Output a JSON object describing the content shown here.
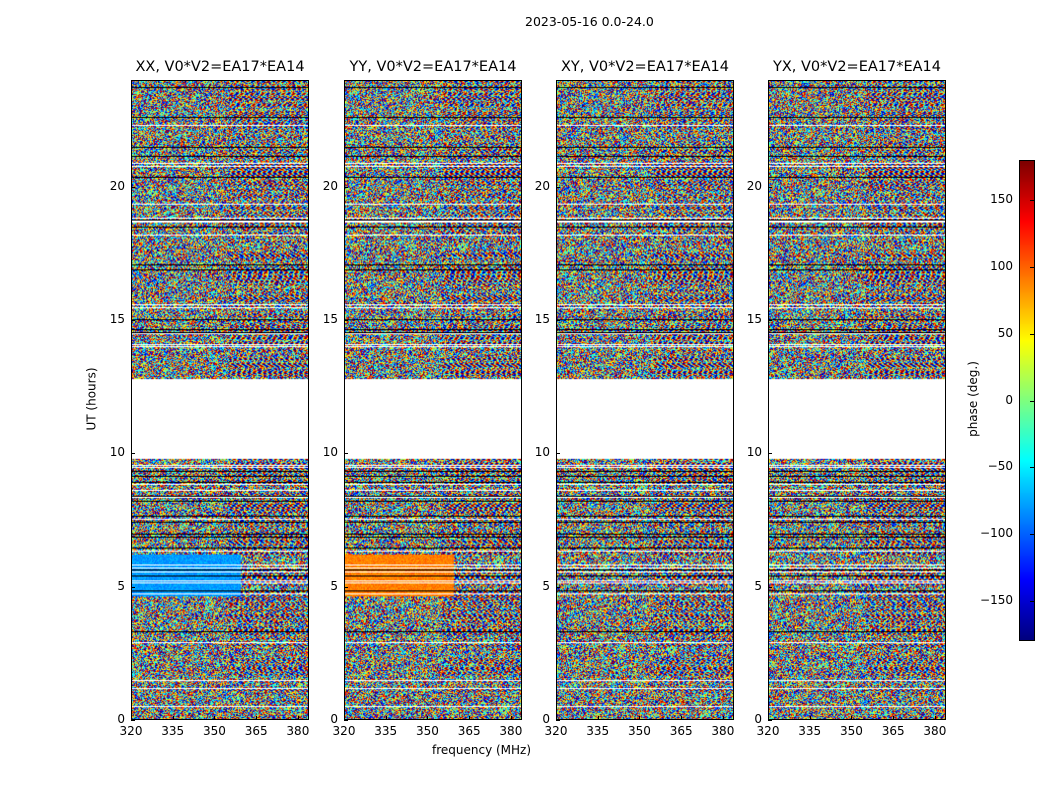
{
  "chart_data": {
    "type": "heatmap",
    "title": "2023-05-16 0.0-24.0",
    "xlabel": "frequency (MHz)",
    "ylabel": "UT (hours)",
    "xlim": [
      320,
      384
    ],
    "ylim": [
      0,
      24
    ],
    "xticks": [
      "320",
      "335",
      "350",
      "365",
      "380"
    ],
    "xtick_values": [
      320,
      335,
      350,
      365,
      380
    ],
    "yticks": [
      "0",
      "5",
      "10",
      "15",
      "20"
    ],
    "ytick_values": [
      0,
      5,
      10,
      15,
      20
    ],
    "no_data_ranges_hours": [
      [
        9.8,
        12.8
      ]
    ],
    "panels": [
      {
        "title": "XX, V0*V2=EA17*EA14",
        "bias": -80
      },
      {
        "title": "YY, V0*V2=EA17*EA14",
        "bias": 90
      },
      {
        "title": "XY, V0*V2=EA17*EA14",
        "bias": null
      },
      {
        "title": "YX, V0*V2=EA17*EA14",
        "bias": null
      }
    ],
    "colorbar": {
      "label": "phase (deg.)",
      "range": [
        -180,
        180
      ],
      "ticks": [
        "150",
        "100",
        "50",
        "0",
        "−50",
        "−100",
        "−150"
      ],
      "tick_values": [
        150,
        100,
        50,
        0,
        -50,
        -100,
        -150
      ],
      "colormap": "jet"
    }
  }
}
